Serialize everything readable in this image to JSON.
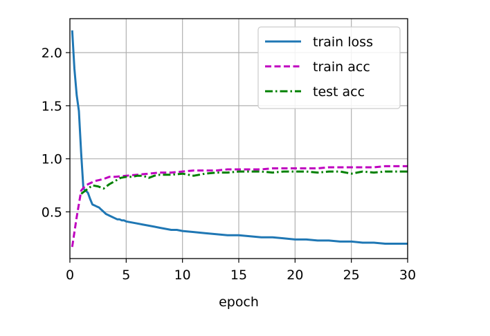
{
  "chart_data": {
    "type": "line",
    "title": "",
    "xlabel": "epoch",
    "ylabel": "",
    "xlim": [
      0,
      30
    ],
    "ylim": [
      0.06,
      2.32
    ],
    "xticks": [
      0,
      5,
      10,
      15,
      20,
      25,
      30
    ],
    "xtick_labels": [
      "0",
      "5",
      "10",
      "15",
      "20",
      "25",
      "30"
    ],
    "yticks": [
      0.5,
      1.0,
      1.5,
      2.0
    ],
    "ytick_labels": [
      "0.5",
      "1.0",
      "1.5",
      "2.0"
    ],
    "grid": true,
    "legend_position": "top-right",
    "series": [
      {
        "name": "train loss",
        "color": "#1f77b4",
        "style": "solid",
        "x": [
          0.2,
          0.4,
          0.6,
          0.8,
          1.0,
          1.2,
          1.4,
          1.6,
          1.8,
          2.0,
          2.2,
          2.4,
          2.6,
          2.8,
          3.0,
          3.2,
          3.4,
          3.6,
          3.8,
          4.0,
          4.2,
          4.4,
          4.6,
          4.8,
          5.0,
          5.5,
          6.0,
          6.5,
          7.0,
          7.5,
          8.0,
          8.5,
          9.0,
          9.5,
          10.0,
          11.0,
          12.0,
          13.0,
          14.0,
          15.0,
          16.0,
          17.0,
          18.0,
          19.0,
          20.0,
          21.0,
          22.0,
          23.0,
          24.0,
          25.0,
          26.0,
          27.0,
          28.0,
          29.0,
          30.0
        ],
        "y": [
          2.21,
          1.85,
          1.6,
          1.45,
          1.05,
          0.72,
          0.7,
          0.68,
          0.62,
          0.57,
          0.56,
          0.55,
          0.54,
          0.52,
          0.5,
          0.48,
          0.47,
          0.46,
          0.45,
          0.44,
          0.43,
          0.43,
          0.42,
          0.42,
          0.41,
          0.4,
          0.39,
          0.38,
          0.37,
          0.36,
          0.35,
          0.34,
          0.33,
          0.33,
          0.32,
          0.31,
          0.3,
          0.29,
          0.28,
          0.28,
          0.27,
          0.26,
          0.26,
          0.25,
          0.24,
          0.24,
          0.23,
          0.23,
          0.22,
          0.22,
          0.21,
          0.21,
          0.2,
          0.2,
          0.2
        ]
      },
      {
        "name": "train acc",
        "color": "#bf00bf",
        "style": "dashed",
        "x": [
          0.2,
          0.6,
          1.0,
          1.4,
          1.8,
          2.2,
          2.6,
          3.0,
          3.5,
          4.0,
          5.0,
          6.0,
          7.0,
          8.0,
          9.0,
          10.0,
          11.0,
          12.0,
          13.0,
          14.0,
          15.0,
          16.0,
          17.0,
          18.0,
          19.0,
          20.0,
          21.0,
          22.0,
          23.0,
          24.0,
          25.0,
          26.0,
          27.0,
          28.0,
          29.0,
          30.0
        ],
        "y": [
          0.17,
          0.45,
          0.7,
          0.75,
          0.77,
          0.79,
          0.8,
          0.81,
          0.83,
          0.83,
          0.84,
          0.85,
          0.86,
          0.87,
          0.87,
          0.88,
          0.89,
          0.89,
          0.89,
          0.9,
          0.9,
          0.9,
          0.9,
          0.91,
          0.91,
          0.91,
          0.91,
          0.91,
          0.92,
          0.92,
          0.92,
          0.92,
          0.92,
          0.93,
          0.93,
          0.93
        ]
      },
      {
        "name": "test acc",
        "color": "#008000",
        "style": "dashdot",
        "x": [
          1.0,
          2.0,
          2.5,
          3.0,
          3.5,
          4.0,
          4.5,
          5.0,
          5.5,
          6.0,
          6.5,
          7.0,
          7.5,
          8.0,
          9.0,
          10.0,
          11.0,
          12.0,
          13.0,
          14.0,
          15.0,
          16.0,
          17.0,
          18.0,
          19.0,
          20.0,
          21.0,
          22.0,
          23.0,
          24.0,
          25.0,
          26.0,
          27.0,
          28.0,
          29.0,
          30.0
        ],
        "y": [
          0.67,
          0.75,
          0.74,
          0.72,
          0.76,
          0.79,
          0.82,
          0.83,
          0.83,
          0.84,
          0.84,
          0.82,
          0.84,
          0.85,
          0.85,
          0.86,
          0.84,
          0.86,
          0.87,
          0.87,
          0.88,
          0.88,
          0.88,
          0.87,
          0.88,
          0.88,
          0.88,
          0.87,
          0.88,
          0.88,
          0.86,
          0.88,
          0.87,
          0.88,
          0.88,
          0.88
        ]
      }
    ]
  }
}
